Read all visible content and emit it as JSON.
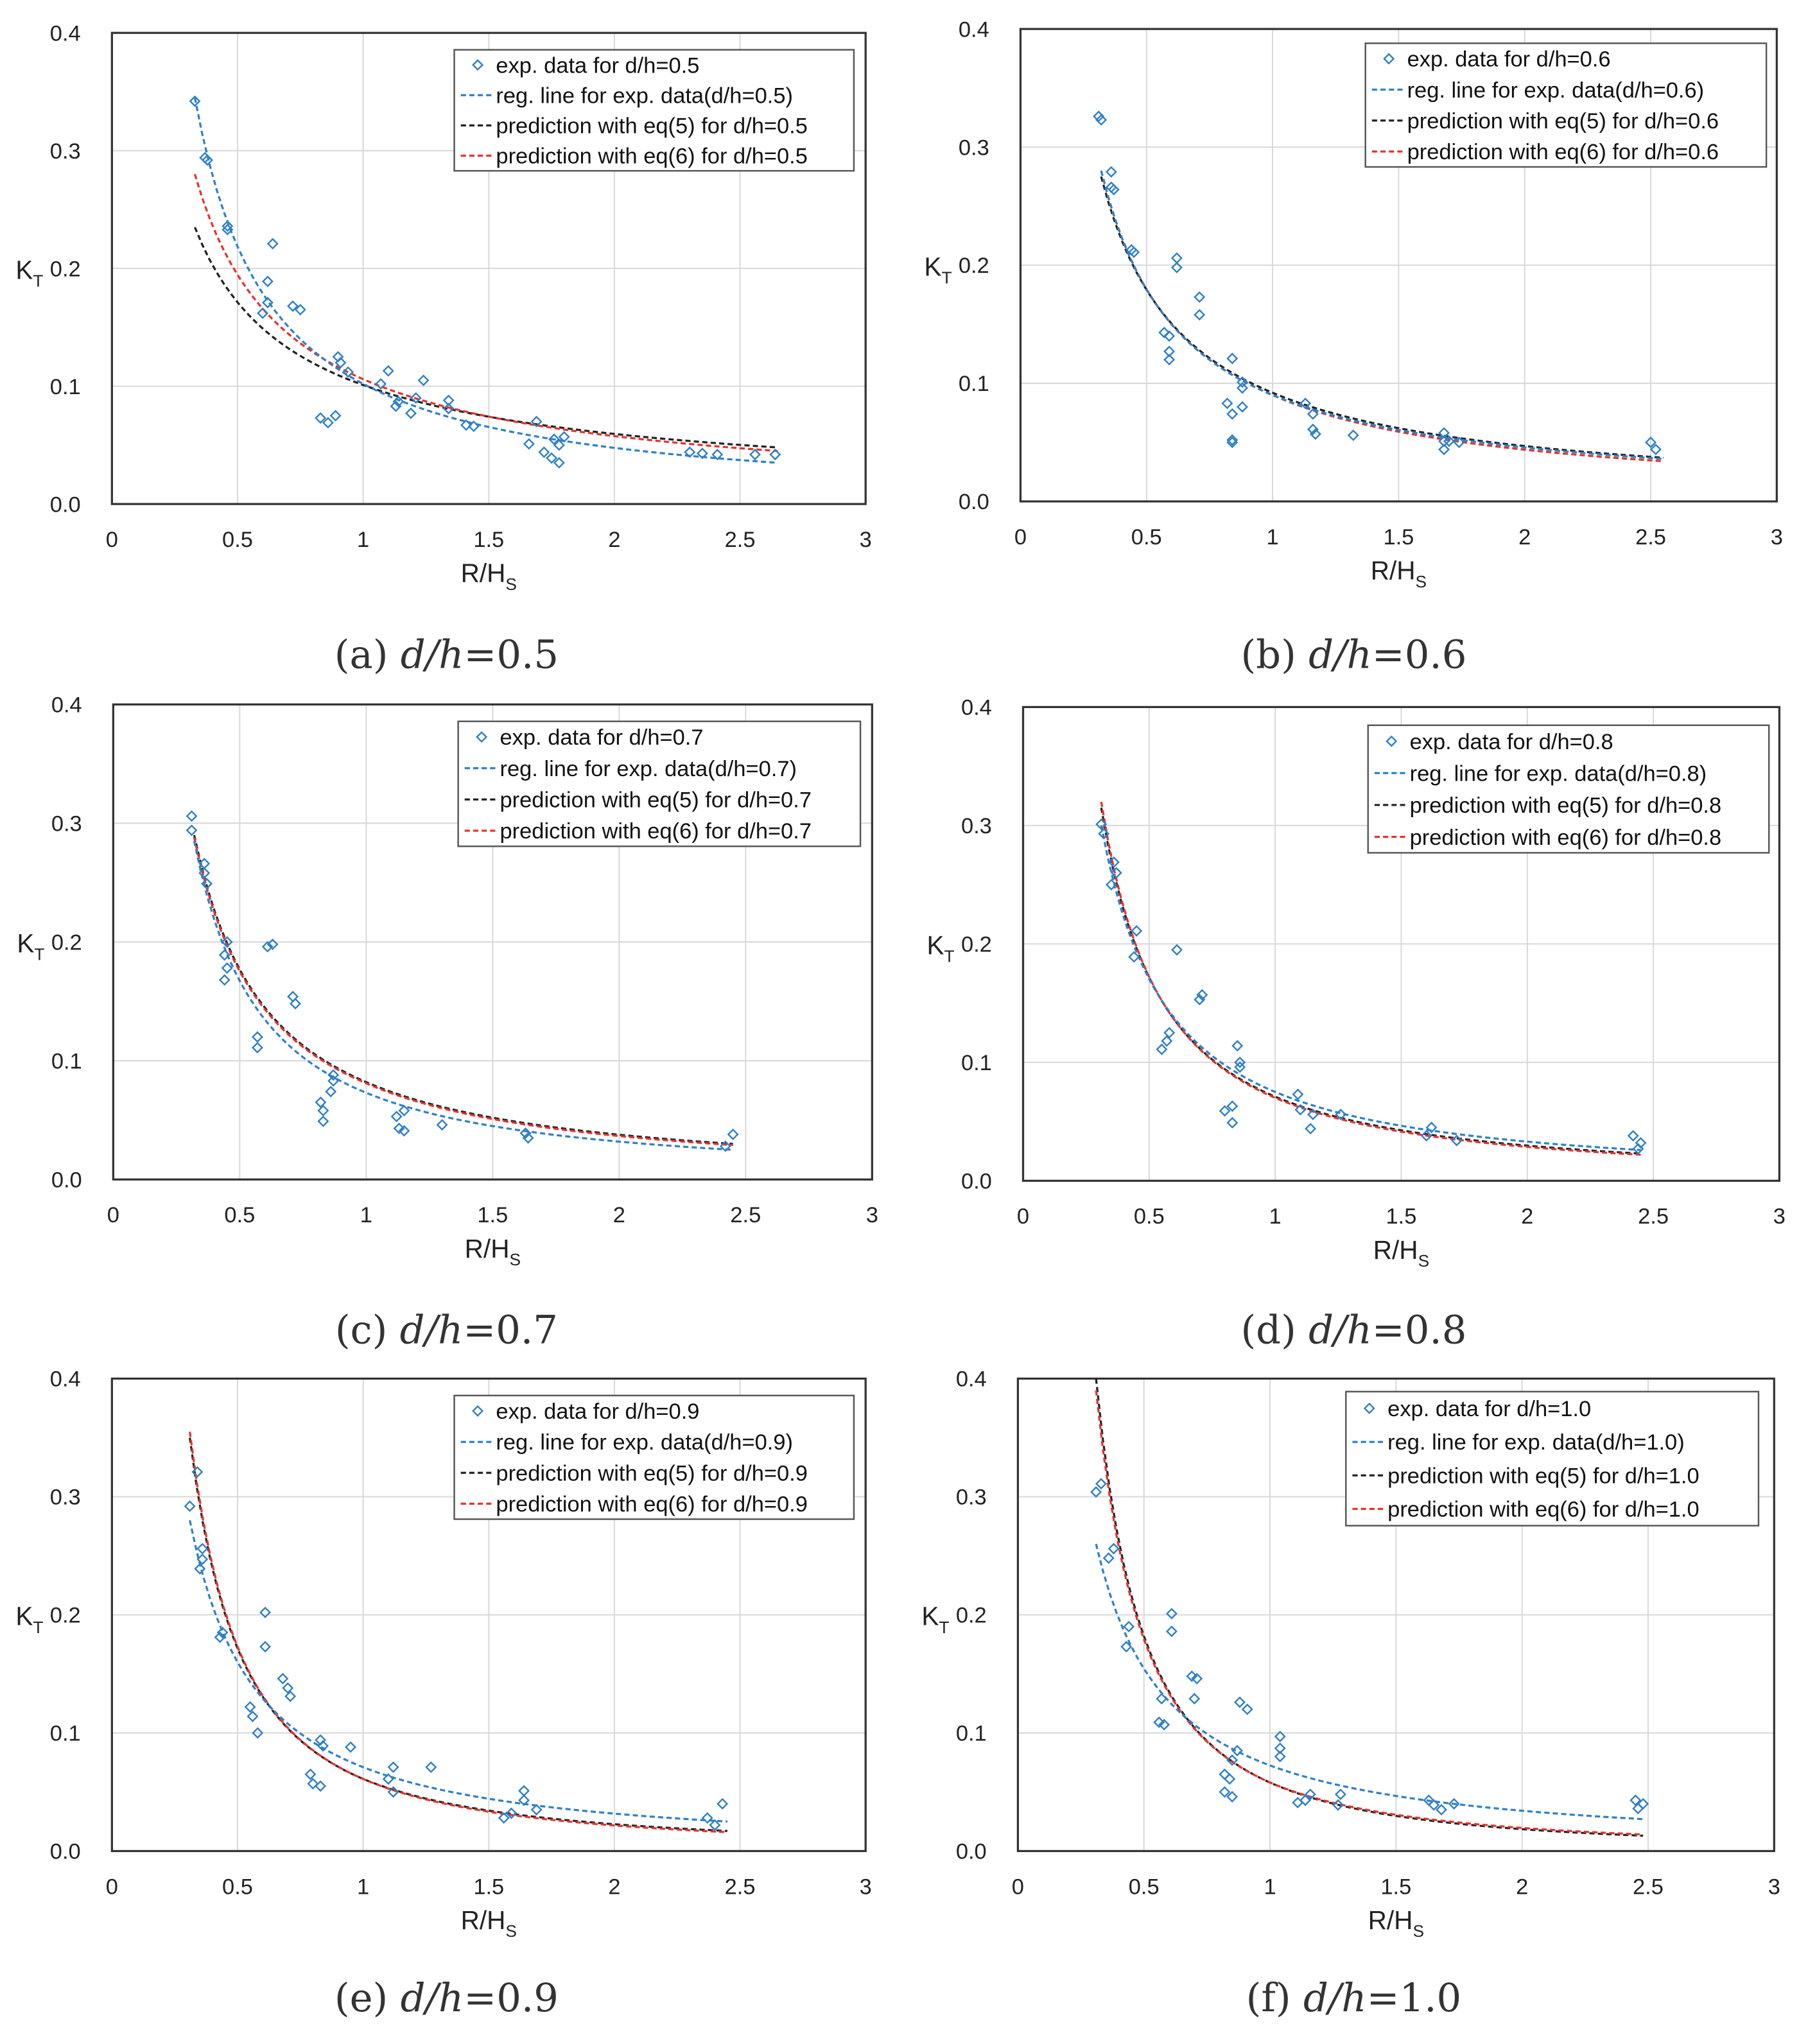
{
  "colors": {
    "exp": "#2f80c8",
    "reg": "#2f80c8",
    "eq5": "#222222",
    "eq6": "#e8312d",
    "grid": "#d9d9d9",
    "frame": "#333333"
  },
  "chart_data": [
    {
      "type": "scatter",
      "caption": {
        "label": "(a)",
        "var": "d/h",
        "value": "=0.5"
      },
      "xlabel": "R/H",
      "xlabel_sub": "S",
      "ylabel": "K",
      "ylabel_sub": "T",
      "xlim": [
        0,
        3
      ],
      "ylim": [
        0,
        0.4
      ],
      "xticks": [
        "0",
        "0.5",
        "1",
        "1.5",
        "2",
        "2.5",
        "3"
      ],
      "yticks": [
        "0.0",
        "0.1",
        "0.2",
        "0.3",
        "0.4"
      ],
      "grid": true,
      "legend_position": "top-right",
      "legend": [
        "exp. data for d/h=0.5",
        "reg. line for exp. data(d/h=0.5)",
        "prediction with eq(5) for d/h=0.5",
        "prediction with eq(6) for d/h=0.5"
      ],
      "exp": [
        [
          0.33,
          0.342
        ],
        [
          0.37,
          0.294
        ],
        [
          0.38,
          0.292
        ],
        [
          0.46,
          0.236
        ],
        [
          0.46,
          0.233
        ],
        [
          0.64,
          0.221
        ],
        [
          0.62,
          0.189
        ],
        [
          0.62,
          0.171
        ],
        [
          0.6,
          0.162
        ],
        [
          0.72,
          0.168
        ],
        [
          0.75,
          0.165
        ],
        [
          0.9,
          0.125
        ],
        [
          0.91,
          0.12
        ],
        [
          0.94,
          0.112
        ],
        [
          0.83,
          0.073
        ],
        [
          0.86,
          0.069
        ],
        [
          0.89,
          0.075
        ],
        [
          1.07,
          0.102
        ],
        [
          1.1,
          0.113
        ],
        [
          1.14,
          0.087
        ],
        [
          1.13,
          0.083
        ],
        [
          1.19,
          0.077
        ],
        [
          1.21,
          0.09
        ],
        [
          1.24,
          0.105
        ],
        [
          1.34,
          0.088
        ],
        [
          1.34,
          0.081
        ],
        [
          1.41,
          0.067
        ],
        [
          1.44,
          0.066
        ],
        [
          1.69,
          0.07
        ],
        [
          1.66,
          0.051
        ],
        [
          1.72,
          0.044
        ],
        [
          1.75,
          0.039
        ],
        [
          1.78,
          0.035
        ],
        [
          1.76,
          0.055
        ],
        [
          1.78,
          0.05
        ],
        [
          1.8,
          0.057
        ],
        [
          2.3,
          0.044
        ],
        [
          2.35,
          0.043
        ],
        [
          2.41,
          0.042
        ],
        [
          2.56,
          0.042
        ],
        [
          2.64,
          0.042
        ]
      ],
      "reg": [
        [
          0.33,
          0.345
        ],
        [
          1,
          0.102
        ],
        [
          2.65,
          0.035
        ]
      ],
      "eq5": [
        [
          0.33,
          0.235
        ],
        [
          1,
          0.101
        ],
        [
          2.65,
          0.048
        ]
      ],
      "eq6": [
        [
          0.33,
          0.28
        ],
        [
          1,
          0.106
        ],
        [
          2.65,
          0.045
        ]
      ]
    },
    {
      "type": "scatter",
      "caption": {
        "label": "(b)",
        "var": "d/h",
        "value": "=0.6"
      },
      "xlabel": "R/H",
      "xlabel_sub": "S",
      "ylabel": "K",
      "ylabel_sub": "T",
      "xlim": [
        0,
        3
      ],
      "ylim": [
        0,
        0.4
      ],
      "xticks": [
        "0",
        "0.5",
        "1",
        "1.5",
        "2",
        "2.5",
        "3"
      ],
      "yticks": [
        "0.0",
        "0.1",
        "0.2",
        "0.3",
        "0.4"
      ],
      "grid": true,
      "legend_position": "top-right",
      "legend": [
        "exp. data for d/h=0.6",
        "reg. line for exp. data(d/h=0.6)",
        "prediction with eq(5) for d/h=0.6",
        "prediction with eq(6) for d/h=0.6"
      ],
      "exp": [
        [
          0.31,
          0.326
        ],
        [
          0.32,
          0.323
        ],
        [
          0.36,
          0.279
        ],
        [
          0.36,
          0.266
        ],
        [
          0.37,
          0.264
        ],
        [
          0.44,
          0.213
        ],
        [
          0.45,
          0.211
        ],
        [
          0.62,
          0.206
        ],
        [
          0.62,
          0.198
        ],
        [
          0.71,
          0.173
        ],
        [
          0.71,
          0.158
        ],
        [
          0.57,
          0.143
        ],
        [
          0.59,
          0.14
        ],
        [
          0.59,
          0.127
        ],
        [
          0.59,
          0.12
        ],
        [
          0.84,
          0.121
        ],
        [
          0.82,
          0.083
        ],
        [
          0.84,
          0.074
        ],
        [
          0.84,
          0.052
        ],
        [
          0.84,
          0.05
        ],
        [
          0.88,
          0.101
        ],
        [
          0.88,
          0.096
        ],
        [
          0.88,
          0.08
        ],
        [
          1.13,
          0.083
        ],
        [
          1.16,
          0.074
        ],
        [
          1.16,
          0.061
        ],
        [
          1.17,
          0.057
        ],
        [
          1.32,
          0.056
        ],
        [
          1.68,
          0.058
        ],
        [
          1.68,
          0.051
        ],
        [
          1.68,
          0.044
        ],
        [
          1.7,
          0.051
        ],
        [
          1.74,
          0.05
        ],
        [
          2.5,
          0.05
        ],
        [
          2.52,
          0.044
        ]
      ],
      "reg": [
        [
          0.32,
          0.28
        ],
        [
          1,
          0.09
        ],
        [
          2.55,
          0.036
        ]
      ],
      "eq5": [
        [
          0.32,
          0.275
        ],
        [
          1,
          0.092
        ],
        [
          2.55,
          0.037
        ]
      ],
      "eq6": [
        [
          0.32,
          0.28
        ],
        [
          1,
          0.09
        ],
        [
          2.55,
          0.034
        ]
      ]
    },
    {
      "type": "scatter",
      "caption": {
        "label": "(c)",
        "var": "d/h",
        "value": "=0.7"
      },
      "xlabel": "R/H",
      "xlabel_sub": "S",
      "ylabel": "K",
      "ylabel_sub": "T",
      "xlim": [
        0,
        3
      ],
      "ylim": [
        0,
        0.4
      ],
      "xticks": [
        "0",
        "0.5",
        "1",
        "1.5",
        "2",
        "2.5",
        "3"
      ],
      "yticks": [
        "0.0",
        "0.1",
        "0.2",
        "0.3",
        "0.4"
      ],
      "grid": true,
      "legend_position": "top-right",
      "legend": [
        "exp. data for d/h=0.7",
        "reg. line for exp. data(d/h=0.7)",
        "prediction with eq(5) for d/h=0.7",
        "prediction with eq(6) for d/h=0.7"
      ],
      "exp": [
        [
          0.31,
          0.306
        ],
        [
          0.31,
          0.294
        ],
        [
          0.36,
          0.266
        ],
        [
          0.36,
          0.258
        ],
        [
          0.37,
          0.249
        ],
        [
          0.45,
          0.2
        ],
        [
          0.44,
          0.189
        ],
        [
          0.45,
          0.178
        ],
        [
          0.44,
          0.168
        ],
        [
          0.61,
          0.196
        ],
        [
          0.63,
          0.198
        ],
        [
          0.71,
          0.154
        ],
        [
          0.72,
          0.148
        ],
        [
          0.57,
          0.12
        ],
        [
          0.57,
          0.111
        ],
        [
          0.82,
          0.065
        ],
        [
          0.83,
          0.058
        ],
        [
          0.83,
          0.049
        ],
        [
          0.86,
          0.074
        ],
        [
          0.87,
          0.083
        ],
        [
          0.87,
          0.088
        ],
        [
          1.12,
          0.053
        ],
        [
          1.15,
          0.058
        ],
        [
          1.13,
          0.043
        ],
        [
          1.15,
          0.041
        ],
        [
          1.3,
          0.046
        ],
        [
          1.63,
          0.039
        ],
        [
          1.64,
          0.035
        ],
        [
          2.45,
          0.038
        ],
        [
          2.42,
          0.028
        ]
      ],
      "reg": [
        [
          0.32,
          0.285
        ],
        [
          1,
          0.073
        ],
        [
          2.45,
          0.025
        ]
      ],
      "eq5": [
        [
          0.32,
          0.29
        ],
        [
          1,
          0.082
        ],
        [
          2.45,
          0.03
        ]
      ],
      "eq6": [
        [
          0.32,
          0.288
        ],
        [
          1,
          0.081
        ],
        [
          2.45,
          0.029
        ]
      ]
    },
    {
      "type": "scatter",
      "caption": {
        "label": "(d)",
        "var": "d/h",
        "value": "=0.8"
      },
      "xlabel": "R/H",
      "xlabel_sub": "S",
      "ylabel": "K",
      "ylabel_sub": "T",
      "xlim": [
        0,
        3
      ],
      "ylim": [
        0,
        0.4
      ],
      "xticks": [
        "0",
        "0.5",
        "1",
        "1.5",
        "2",
        "2.5",
        "3"
      ],
      "yticks": [
        "0.0",
        "0.1",
        "0.2",
        "0.3",
        "0.4"
      ],
      "grid": true,
      "legend_position": "top-right",
      "legend": [
        "exp. data for d/h=0.8",
        "reg. line for exp. data(d/h=0.8)",
        "prediction with eq(5) for d/h=0.8",
        "prediction with eq(6) for d/h=0.8"
      ],
      "exp": [
        [
          0.31,
          0.301
        ],
        [
          0.32,
          0.293
        ],
        [
          0.36,
          0.269
        ],
        [
          0.37,
          0.26
        ],
        [
          0.35,
          0.25
        ],
        [
          0.45,
          0.211
        ],
        [
          0.44,
          0.189
        ],
        [
          0.61,
          0.195
        ],
        [
          0.7,
          0.153
        ],
        [
          0.71,
          0.157
        ],
        [
          0.58,
          0.125
        ],
        [
          0.57,
          0.118
        ],
        [
          0.55,
          0.111
        ],
        [
          0.85,
          0.114
        ],
        [
          0.86,
          0.1
        ],
        [
          0.86,
          0.096
        ],
        [
          0.8,
          0.059
        ],
        [
          0.83,
          0.063
        ],
        [
          0.83,
          0.049
        ],
        [
          1.09,
          0.073
        ],
        [
          1.1,
          0.06
        ],
        [
          1.14,
          0.044
        ],
        [
          1.15,
          0.056
        ],
        [
          1.26,
          0.056
        ],
        [
          1.6,
          0.038
        ],
        [
          1.62,
          0.045
        ],
        [
          1.72,
          0.034
        ],
        [
          2.42,
          0.038
        ],
        [
          2.44,
          0.027
        ],
        [
          2.45,
          0.032
        ]
      ],
      "reg": [
        [
          0.31,
          0.3
        ],
        [
          1,
          0.075
        ],
        [
          2.45,
          0.026
        ]
      ],
      "eq5": [
        [
          0.31,
          0.315
        ],
        [
          1,
          0.071
        ],
        [
          2.45,
          0.023
        ]
      ],
      "eq6": [
        [
          0.31,
          0.32
        ],
        [
          1,
          0.07
        ],
        [
          2.45,
          0.022
        ]
      ]
    },
    {
      "type": "scatter",
      "caption": {
        "label": "(e)",
        "var": "d/h",
        "value": "=0.9"
      },
      "xlabel": "R/H",
      "xlabel_sub": "S",
      "ylabel": "K",
      "ylabel_sub": "T",
      "xlim": [
        0,
        3
      ],
      "ylim": [
        0,
        0.4
      ],
      "xticks": [
        "0",
        "0.5",
        "1",
        "1.5",
        "2",
        "2.5",
        "3"
      ],
      "yticks": [
        "0.0",
        "0.1",
        "0.2",
        "0.3",
        "0.4"
      ],
      "grid": true,
      "legend_position": "top-right",
      "legend": [
        "exp. data for d/h=0.9",
        "reg. line for exp. data(d/h=0.9)",
        "prediction with eq(5) for d/h=0.9",
        "prediction with eq(6) for d/h=0.9"
      ],
      "exp": [
        [
          0.31,
          0.292
        ],
        [
          0.34,
          0.321
        ],
        [
          0.35,
          0.239
        ],
        [
          0.36,
          0.256
        ],
        [
          0.36,
          0.247
        ],
        [
          0.43,
          0.181
        ],
        [
          0.44,
          0.185
        ],
        [
          0.61,
          0.202
        ],
        [
          0.61,
          0.173
        ],
        [
          0.68,
          0.146
        ],
        [
          0.7,
          0.138
        ],
        [
          0.71,
          0.131
        ],
        [
          0.55,
          0.122
        ],
        [
          0.56,
          0.114
        ],
        [
          0.58,
          0.1
        ],
        [
          0.83,
          0.094
        ],
        [
          0.84,
          0.089
        ],
        [
          0.79,
          0.065
        ],
        [
          0.8,
          0.057
        ],
        [
          0.83,
          0.055
        ],
        [
          0.95,
          0.088
        ],
        [
          1.12,
          0.071
        ],
        [
          1.1,
          0.061
        ],
        [
          1.12,
          0.05
        ],
        [
          1.27,
          0.071
        ],
        [
          1.56,
          0.028
        ],
        [
          1.59,
          0.032
        ],
        [
          1.64,
          0.051
        ],
        [
          1.64,
          0.043
        ],
        [
          1.69,
          0.035
        ],
        [
          2.37,
          0.028
        ],
        [
          2.4,
          0.022
        ],
        [
          2.43,
          0.04
        ]
      ],
      "reg": [
        [
          0.31,
          0.28
        ],
        [
          1,
          0.071
        ],
        [
          2.45,
          0.025
        ]
      ],
      "eq5": [
        [
          0.31,
          0.35
        ],
        [
          1,
          0.061
        ],
        [
          2.45,
          0.017
        ]
      ],
      "eq6": [
        [
          0.31,
          0.355
        ],
        [
          1,
          0.061
        ],
        [
          2.45,
          0.016
        ]
      ]
    },
    {
      "type": "scatter",
      "caption": {
        "label": "(f)",
        "var": "d/h",
        "value": "=1.0"
      },
      "xlabel": "R/H",
      "xlabel_sub": "S",
      "ylabel": "K",
      "ylabel_sub": "T",
      "xlim": [
        0,
        3
      ],
      "ylim": [
        0,
        0.4
      ],
      "xticks": [
        "0",
        "0.5",
        "1",
        "1.5",
        "2",
        "2.5",
        "3"
      ],
      "yticks": [
        "0.0",
        "0.1",
        "0.2",
        "0.3",
        "0.4"
      ],
      "grid": true,
      "legend_position": "top-right",
      "legend": [
        "exp. data for d/h=1.0",
        "reg. line for exp. data(d/h=1.0)",
        "prediction with eq(5) for d/h=1.0",
        "prediction with eq(6) for d/h=1.0"
      ],
      "exp": [
        [
          0.31,
          0.304
        ],
        [
          0.33,
          0.311
        ],
        [
          0.36,
          0.248
        ],
        [
          0.38,
          0.256
        ],
        [
          0.44,
          0.19
        ],
        [
          0.43,
          0.173
        ],
        [
          0.61,
          0.201
        ],
        [
          0.61,
          0.186
        ],
        [
          0.57,
          0.129
        ],
        [
          0.58,
          0.107
        ],
        [
          0.56,
          0.109
        ],
        [
          0.69,
          0.148
        ],
        [
          0.71,
          0.146
        ],
        [
          0.7,
          0.129
        ],
        [
          0.88,
          0.126
        ],
        [
          0.91,
          0.12
        ],
        [
          0.82,
          0.065
        ],
        [
          0.84,
          0.061
        ],
        [
          0.82,
          0.05
        ],
        [
          0.85,
          0.046
        ],
        [
          0.85,
          0.077
        ],
        [
          0.87,
          0.085
        ],
        [
          1.04,
          0.097
        ],
        [
          1.04,
          0.087
        ],
        [
          1.04,
          0.08
        ],
        [
          1.11,
          0.041
        ],
        [
          1.14,
          0.043
        ],
        [
          1.16,
          0.048
        ],
        [
          1.28,
          0.048
        ],
        [
          1.27,
          0.039
        ],
        [
          1.63,
          0.043
        ],
        [
          1.65,
          0.039
        ],
        [
          1.68,
          0.035
        ],
        [
          1.73,
          0.04
        ],
        [
          2.45,
          0.043
        ],
        [
          2.46,
          0.036
        ],
        [
          2.48,
          0.04
        ]
      ],
      "reg": [
        [
          0.31,
          0.26
        ],
        [
          1,
          0.0725
        ],
        [
          2.48,
          0.027
        ]
      ],
      "eq5": [
        [
          0.31,
          0.4
        ],
        [
          1,
          0.058
        ],
        [
          2.48,
          0.013
        ]
      ],
      "eq6": [
        [
          0.31,
          0.39
        ],
        [
          1,
          0.058
        ],
        [
          2.48,
          0.014
        ]
      ]
    }
  ]
}
